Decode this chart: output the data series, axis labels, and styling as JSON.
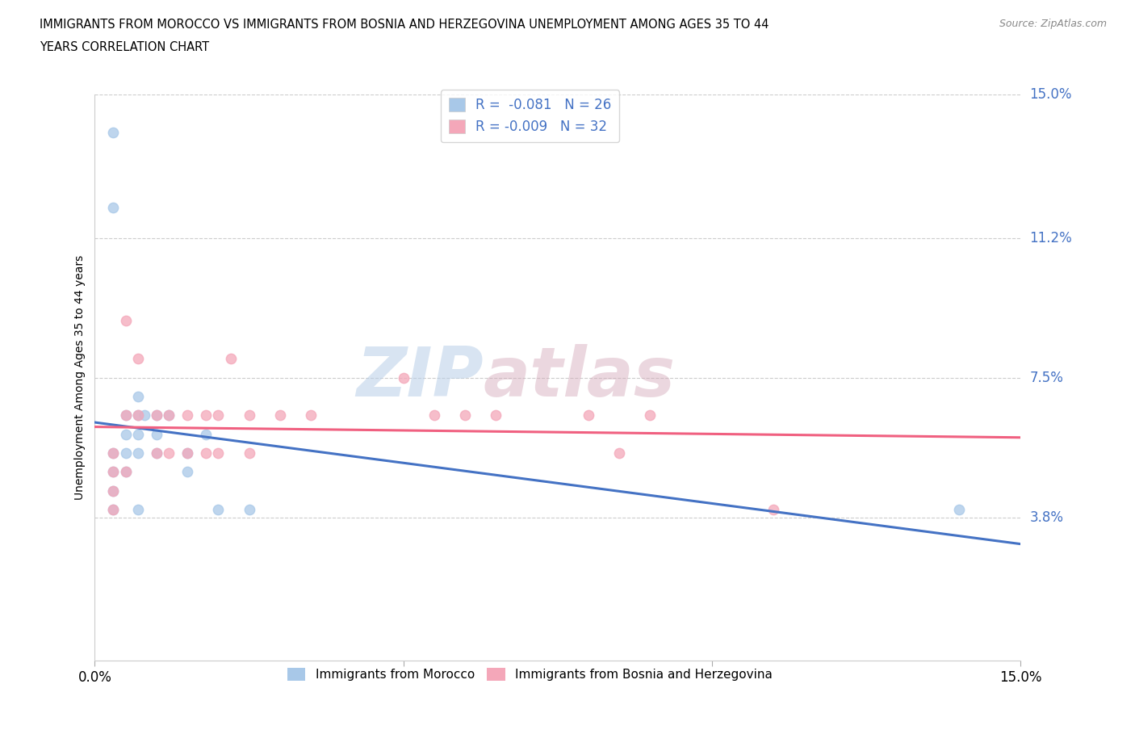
{
  "title_line1": "IMMIGRANTS FROM MOROCCO VS IMMIGRANTS FROM BOSNIA AND HERZEGOVINA UNEMPLOYMENT AMONG AGES 35 TO 44",
  "title_line2": "YEARS CORRELATION CHART",
  "source": "Source: ZipAtlas.com",
  "ylabel": "Unemployment Among Ages 35 to 44 years",
  "xmin": 0.0,
  "xmax": 0.15,
  "ymin": 0.0,
  "ymax": 0.15,
  "yticks": [
    0.038,
    0.075,
    0.112,
    0.15
  ],
  "ytick_labels": [
    "3.8%",
    "7.5%",
    "11.2%",
    "15.0%"
  ],
  "morocco_R": "-0.081",
  "morocco_N": "26",
  "bosnia_R": "-0.009",
  "bosnia_N": "32",
  "morocco_color": "#a8c8e8",
  "bosnia_color": "#f4a7b9",
  "morocco_line_color": "#4472c4",
  "bosnia_line_color": "#f06080",
  "watermark_zip": "ZIP",
  "watermark_atlas": "atlas",
  "morocco_scatter_x": [
    0.003,
    0.003,
    0.003,
    0.003,
    0.003,
    0.005,
    0.005,
    0.005,
    0.005,
    0.007,
    0.007,
    0.007,
    0.007,
    0.007,
    0.008,
    0.01,
    0.01,
    0.01,
    0.012,
    0.015,
    0.015,
    0.018,
    0.02,
    0.025,
    0.14,
    0.003
  ],
  "morocco_scatter_y": [
    0.14,
    0.055,
    0.05,
    0.045,
    0.04,
    0.065,
    0.06,
    0.055,
    0.05,
    0.07,
    0.065,
    0.06,
    0.055,
    0.04,
    0.065,
    0.065,
    0.06,
    0.055,
    0.065,
    0.055,
    0.05,
    0.06,
    0.04,
    0.04,
    0.04,
    0.12
  ],
  "bosnia_scatter_x": [
    0.003,
    0.003,
    0.003,
    0.003,
    0.005,
    0.005,
    0.005,
    0.007,
    0.007,
    0.01,
    0.01,
    0.012,
    0.012,
    0.015,
    0.015,
    0.018,
    0.018,
    0.02,
    0.02,
    0.022,
    0.025,
    0.025,
    0.03,
    0.035,
    0.05,
    0.055,
    0.06,
    0.065,
    0.08,
    0.085,
    0.09,
    0.11
  ],
  "bosnia_scatter_y": [
    0.055,
    0.05,
    0.045,
    0.04,
    0.09,
    0.065,
    0.05,
    0.08,
    0.065,
    0.065,
    0.055,
    0.065,
    0.055,
    0.065,
    0.055,
    0.065,
    0.055,
    0.065,
    0.055,
    0.08,
    0.065,
    0.055,
    0.065,
    0.065,
    0.075,
    0.065,
    0.065,
    0.065,
    0.065,
    0.055,
    0.065,
    0.04
  ]
}
